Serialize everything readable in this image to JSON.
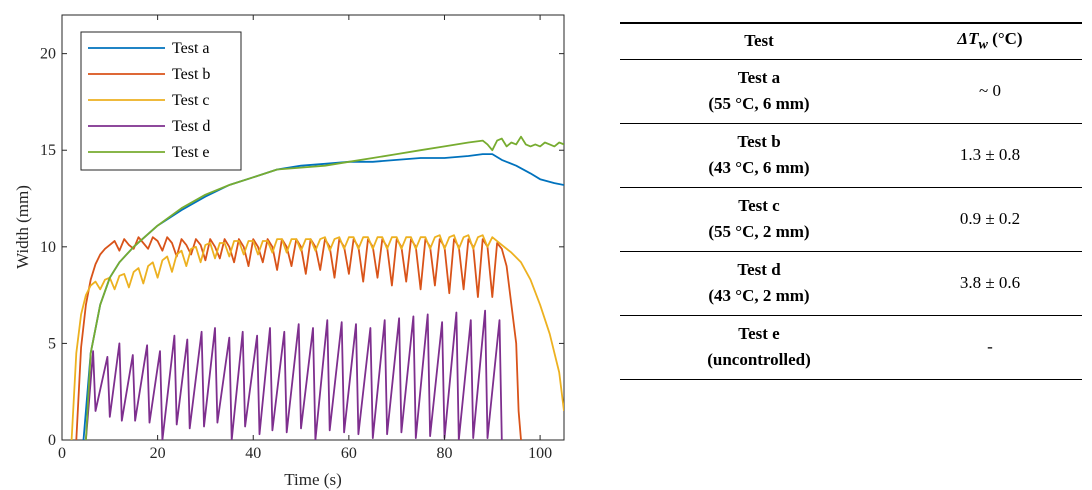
{
  "chart_data": {
    "type": "line",
    "title": "",
    "xlabel": "Time (s)",
    "ylabel": "Width (mm)",
    "xlim": [
      0,
      105
    ],
    "ylim": [
      0,
      22
    ],
    "xticks": [
      0,
      20,
      40,
      60,
      80,
      100
    ],
    "yticks": [
      0,
      5,
      10,
      15,
      20
    ],
    "grid": false,
    "legend": "top-left",
    "series": [
      {
        "name": "Test a",
        "color": "#0072BD",
        "x": [
          4.5,
          6,
          8,
          10,
          12,
          15,
          20,
          25,
          30,
          35,
          40,
          45,
          50,
          55,
          60,
          65,
          70,
          75,
          80,
          85,
          88,
          90,
          92,
          95,
          98,
          100,
          103,
          105
        ],
        "y": [
          0,
          4.5,
          7,
          8.4,
          9.2,
          10,
          11.1,
          11.9,
          12.6,
          13.2,
          13.6,
          14,
          14.2,
          14.3,
          14.4,
          14.4,
          14.5,
          14.6,
          14.6,
          14.7,
          14.8,
          14.8,
          14.5,
          14.2,
          13.8,
          13.5,
          13.3,
          13.2
        ]
      },
      {
        "name": "Test b",
        "color": "#D95319",
        "x": [
          3,
          4,
          5,
          6,
          7,
          8,
          9,
          10,
          11,
          12,
          13,
          14,
          15,
          16,
          17,
          18,
          19,
          20,
          21,
          22,
          23,
          24,
          25,
          26,
          27,
          28,
          29,
          30,
          31,
          32,
          33,
          34,
          35,
          36,
          37,
          38,
          39,
          40,
          41,
          42,
          43,
          44,
          45,
          46,
          47,
          48,
          49,
          50,
          51,
          52,
          53,
          54,
          55,
          56,
          57,
          58,
          59,
          60,
          61,
          62,
          63,
          64,
          65,
          66,
          67,
          68,
          69,
          70,
          71,
          72,
          73,
          74,
          75,
          76,
          77,
          78,
          79,
          80,
          81,
          82,
          83,
          84,
          85,
          86,
          87,
          88,
          89,
          90,
          91,
          92,
          93,
          94,
          95,
          95.5,
          96
        ],
        "y": [
          0,
          4.8,
          7,
          8.3,
          9.1,
          9.6,
          9.9,
          10.1,
          10.3,
          9.8,
          10.4,
          10.1,
          9.9,
          10.5,
          10.2,
          9.9,
          10.5,
          10.3,
          9.8,
          10.5,
          10.2,
          9.5,
          10.4,
          10.1,
          9.6,
          10.4,
          10.1,
          9.3,
          10.4,
          10.0,
          9.4,
          10.4,
          10.0,
          9.2,
          10.4,
          10.0,
          9.0,
          10.4,
          10.0,
          9.2,
          10.4,
          10.0,
          8.8,
          10.4,
          10.0,
          9.0,
          10.4,
          10.0,
          8.6,
          10.4,
          10.0,
          8.8,
          10.4,
          10.0,
          8.4,
          10.4,
          10.0,
          8.6,
          10.4,
          10.0,
          8.2,
          10.4,
          10.0,
          8.4,
          10.4,
          10.0,
          8.0,
          10.4,
          10.0,
          8.2,
          10.4,
          10.0,
          7.8,
          10.4,
          10.0,
          8.0,
          10.4,
          10.0,
          7.6,
          10.4,
          10.0,
          7.8,
          10.4,
          10.0,
          7.4,
          10.4,
          10.0,
          7.4,
          10.2,
          9.9,
          9.0,
          7.0,
          5.0,
          1.5,
          0
        ]
      },
      {
        "name": "Test c",
        "color": "#EDB120",
        "x": [
          2,
          3,
          4,
          5,
          6,
          7,
          8,
          9,
          10,
          11,
          12,
          13,
          14,
          15,
          16,
          17,
          18,
          19,
          20,
          21,
          22,
          23,
          24,
          25,
          26,
          27,
          28,
          29,
          30,
          31,
          32,
          33,
          34,
          35,
          36,
          37,
          38,
          39,
          40,
          41,
          42,
          43,
          44,
          45,
          46,
          47,
          48,
          49,
          50,
          51,
          52,
          53,
          54,
          55,
          56,
          57,
          58,
          59,
          60,
          61,
          62,
          63,
          64,
          65,
          66,
          67,
          68,
          69,
          70,
          71,
          72,
          73,
          74,
          75,
          76,
          77,
          78,
          79,
          80,
          81,
          82,
          83,
          84,
          85,
          86,
          87,
          88,
          89,
          90,
          92,
          94,
          96,
          98,
          100,
          102,
          104,
          105
        ],
        "y": [
          0,
          4.5,
          6.5,
          7.5,
          8.0,
          8.2,
          7.8,
          8.3,
          8.4,
          7.8,
          8.5,
          8.6,
          7.9,
          8.7,
          8.9,
          8.1,
          9.0,
          9.2,
          8.4,
          9.3,
          9.5,
          8.7,
          9.6,
          9.8,
          9.0,
          9.9,
          10.0,
          9.2,
          10.1,
          10.2,
          9.4,
          10.2,
          10.2,
          9.5,
          10.3,
          10.3,
          9.6,
          10.3,
          10.3,
          9.6,
          10.3,
          10.3,
          9.7,
          10.4,
          10.4,
          9.7,
          10.4,
          10.4,
          9.8,
          10.4,
          10.4,
          9.8,
          10.4,
          10.5,
          9.8,
          10.4,
          10.5,
          9.9,
          10.5,
          10.5,
          9.9,
          10.5,
          10.5,
          9.9,
          10.5,
          10.5,
          9.9,
          10.5,
          10.5,
          9.9,
          10.5,
          10.5,
          9.9,
          10.5,
          10.5,
          9.9,
          10.5,
          10.6,
          9.9,
          10.5,
          10.6,
          9.9,
          10.5,
          10.6,
          9.9,
          10.5,
          10.6,
          10.0,
          10.5,
          10.1,
          9.7,
          9.2,
          8.3,
          7.0,
          5.5,
          3.5,
          1.5
        ]
      },
      {
        "name": "Test d",
        "color": "#7E2F8E",
        "x": [
          5,
          6.5,
          7,
          9.5,
          10,
          12,
          12.5,
          14.8,
          15.3,
          17.8,
          18.3,
          20.5,
          21,
          23.5,
          24,
          26.2,
          26.7,
          29.2,
          29.7,
          32,
          32.5,
          35,
          35.5,
          37.8,
          38.3,
          40.8,
          41.3,
          43.5,
          44,
          46.5,
          47,
          49.5,
          50,
          52.5,
          53,
          55.5,
          56,
          58.5,
          59,
          61.5,
          62,
          64.5,
          65,
          67.5,
          68,
          70.5,
          71,
          73.5,
          74,
          76.5,
          77,
          79.5,
          80,
          82.5,
          83,
          85.5,
          86,
          88.5,
          89,
          91.5,
          92
        ],
        "y": [
          0,
          4.6,
          1.5,
          4.3,
          1.2,
          5.0,
          1.0,
          4.4,
          1.0,
          4.9,
          0.9,
          4.6,
          0,
          5.4,
          0.8,
          5.2,
          0.6,
          5.6,
          0.7,
          5.8,
          0.9,
          5.3,
          0,
          5.6,
          0.7,
          5.4,
          0.3,
          5.8,
          0.5,
          5.6,
          0.4,
          6.0,
          0.6,
          5.8,
          0,
          6.2,
          0.5,
          6.1,
          0.4,
          6.0,
          0.3,
          5.8,
          0.1,
          6.2,
          0.3,
          6.3,
          0.4,
          6.4,
          0.1,
          6.5,
          0.2,
          6.1,
          0.1,
          6.6,
          0,
          6.2,
          0.1,
          6.7,
          0.1,
          6.2,
          0
        ]
      },
      {
        "name": "Test e",
        "color": "#77AC30",
        "x": [
          5,
          6,
          8,
          10,
          12,
          15,
          20,
          25,
          30,
          35,
          40,
          45,
          50,
          55,
          60,
          65,
          70,
          75,
          80,
          85,
          88,
          89,
          90,
          91,
          92,
          93,
          94,
          95,
          96,
          97,
          98,
          99,
          100,
          101,
          102,
          103,
          104,
          105
        ],
        "y": [
          0,
          4.5,
          7,
          8.4,
          9.2,
          10,
          11.1,
          12,
          12.7,
          13.2,
          13.6,
          14,
          14.1,
          14.2,
          14.4,
          14.6,
          14.8,
          15.0,
          15.2,
          15.4,
          15.5,
          15.3,
          15.0,
          15.5,
          15.6,
          15.2,
          15.4,
          15.3,
          15.7,
          15.3,
          15.2,
          15.3,
          15.2,
          15.4,
          15.3,
          15.2,
          15.4,
          15.3
        ]
      }
    ]
  },
  "table": {
    "header": {
      "test": "Test",
      "dtw_symbol": "ΔT",
      "dtw_sub": "w",
      "dtw_unit": " (°C)"
    },
    "rows": [
      {
        "name": "Test a",
        "condition": "(55 °C, 6 mm)",
        "value": "~ 0"
      },
      {
        "name": "Test b",
        "condition": "(43 °C, 6 mm)",
        "value": "1.3 ± 0.8"
      },
      {
        "name": "Test c",
        "condition": "(55 °C, 2 mm)",
        "value": "0.9 ± 0.2"
      },
      {
        "name": "Test d",
        "condition": "(43 °C, 2 mm)",
        "value": "3.8 ± 0.6"
      },
      {
        "name": "Test e",
        "condition": "(uncontrolled)",
        "value": "-"
      }
    ]
  }
}
